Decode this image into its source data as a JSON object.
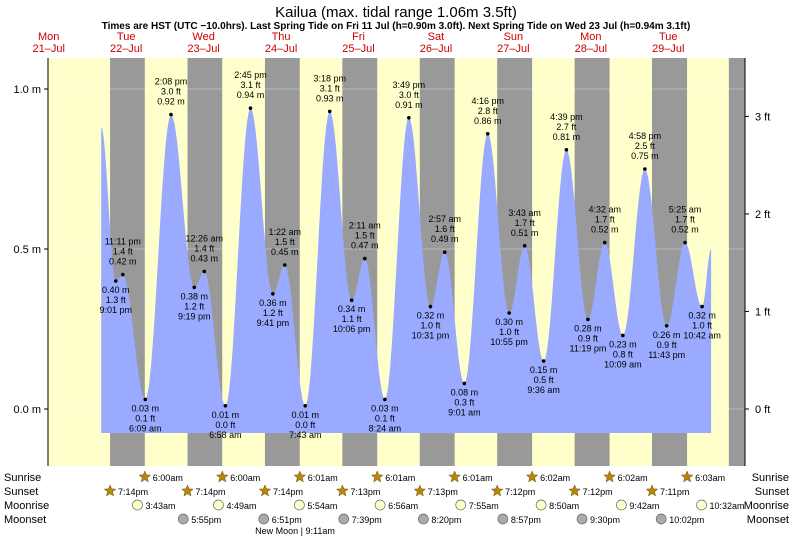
{
  "title": "Kailua (max. tidal range 1.06m 3.5ft)",
  "subtitle": "Times are HST (UTC −10.0hrs). Last Spring Tide on Fri 11 Jul (h=0.90m 3.0ft). Next Spring Tide on Wed 23 Jul (h=0.94m 3.1ft)",
  "colors": {
    "day": "#ffffcc",
    "night": "#999999",
    "water": "#99aaff",
    "date_text": "#cc0000",
    "sun_icon": "#b8860b",
    "moonrise_icon": "#ffffcc",
    "moonset_icon": "#aaaaaa"
  },
  "days": [
    {
      "dow": "Mon",
      "date": "21–Jul"
    },
    {
      "dow": "Tue",
      "date": "22–Jul"
    },
    {
      "dow": "Wed",
      "date": "23–Jul"
    },
    {
      "dow": "Thu",
      "date": "24–Jul"
    },
    {
      "dow": "Fri",
      "date": "25–Jul"
    },
    {
      "dow": "Sat",
      "date": "26–Jul"
    },
    {
      "dow": "Sun",
      "date": "27–Jul"
    },
    {
      "dow": "Mon",
      "date": "28–Jul"
    },
    {
      "dow": "Tue",
      "date": "29–Jul"
    }
  ],
  "row_labels": {
    "sunrise": "Sunrise",
    "sunset": "Sunset",
    "moonrise": "Moonrise",
    "moonset": "Moonset"
  },
  "moon_phase": "New Moon | 9:11am",
  "chart_data": {
    "type": "area",
    "x_unit": "hours since Mon 21-Jul 00:00 HST",
    "y_unit": "m",
    "ylim": [
      -0.1,
      1.1
    ],
    "xlim": [
      0,
      216
    ],
    "y_ticks_m": [
      {
        "v": 0.0,
        "label": "0.0 m"
      },
      {
        "v": 0.5,
        "label": "0.5 m"
      },
      {
        "v": 1.0,
        "label": "1.0 m"
      }
    ],
    "y_ticks_ft": [
      {
        "v": 0,
        "label": "0 ft"
      },
      {
        "v": 1,
        "label": "1 ft"
      },
      {
        "v": 2,
        "label": "2 ft"
      },
      {
        "v": 3,
        "label": "3 ft"
      }
    ],
    "series_start": {
      "t": 16.5,
      "h": 0.88
    },
    "series_end": {
      "t": 205.5,
      "h": 0.5
    },
    "tides": [
      {
        "t": 21.0,
        "time": "9:01 pm",
        "m": "0.40 m",
        "ft": "1.3 ft",
        "h": 0.4,
        "type": "low"
      },
      {
        "t": 23.18,
        "time": "11:11 pm",
        "m": "0.42 m",
        "ft": "1.4 ft",
        "h": 0.42,
        "type": "high"
      },
      {
        "t": 30.15,
        "time": "6:09 am",
        "m": "0.03 m",
        "ft": "0.1 ft",
        "h": 0.03,
        "type": "low"
      },
      {
        "t": 38.13,
        "time": "2:08 pm",
        "m": "0.92 m",
        "ft": "3.0 ft",
        "h": 0.92,
        "type": "high"
      },
      {
        "t": 45.32,
        "time": "9:19 pm",
        "m": "0.38 m",
        "ft": "1.2 ft",
        "h": 0.38,
        "type": "low"
      },
      {
        "t": 48.43,
        "time": "12:26 am",
        "m": "0.43 m",
        "ft": "1.4 ft",
        "h": 0.43,
        "type": "high"
      },
      {
        "t": 54.97,
        "time": "6:58 am",
        "m": "0.01 m",
        "ft": "0.0 ft",
        "h": 0.01,
        "type": "low"
      },
      {
        "t": 62.75,
        "time": "2:45 pm",
        "m": "0.94 m",
        "ft": "3.1 ft",
        "h": 0.94,
        "type": "high"
      },
      {
        "t": 69.68,
        "time": "9:41 pm",
        "m": "0.36 m",
        "ft": "1.2 ft",
        "h": 0.36,
        "type": "low"
      },
      {
        "t": 73.37,
        "time": "1:22 am",
        "m": "0.45 m",
        "ft": "1.5 ft",
        "h": 0.45,
        "type": "high"
      },
      {
        "t": 79.72,
        "time": "7:43 am",
        "m": "0.01 m",
        "ft": "0.0 ft",
        "h": 0.01,
        "type": "low"
      },
      {
        "t": 87.3,
        "time": "3:18 pm",
        "m": "0.93 m",
        "ft": "3.1 ft",
        "h": 0.93,
        "type": "high"
      },
      {
        "t": 94.1,
        "time": "10:06 pm",
        "m": "0.34 m",
        "ft": "1.1 ft",
        "h": 0.34,
        "type": "low"
      },
      {
        "t": 98.18,
        "time": "2:11 am",
        "m": "0.47 m",
        "ft": "1.5 ft",
        "h": 0.47,
        "type": "high"
      },
      {
        "t": 104.4,
        "time": "8:24 am",
        "m": "0.03 m",
        "ft": "0.1 ft",
        "h": 0.03,
        "type": "low"
      },
      {
        "t": 111.82,
        "time": "3:49 pm",
        "m": "0.91 m",
        "ft": "3.0 ft",
        "h": 0.91,
        "type": "high"
      },
      {
        "t": 118.52,
        "time": "10:31 pm",
        "m": "0.32 m",
        "ft": "1.0 ft",
        "h": 0.32,
        "type": "low"
      },
      {
        "t": 122.95,
        "time": "2:57 am",
        "m": "0.49 m",
        "ft": "1.6 ft",
        "h": 0.49,
        "type": "high"
      },
      {
        "t": 129.02,
        "time": "9:01 am",
        "m": "0.08 m",
        "ft": "0.3 ft",
        "h": 0.08,
        "type": "low"
      },
      {
        "t": 136.27,
        "time": "4:16 pm",
        "m": "0.86 m",
        "ft": "2.8 ft",
        "h": 0.86,
        "type": "high"
      },
      {
        "t": 142.92,
        "time": "10:55 pm",
        "m": "0.30 m",
        "ft": "1.0 ft",
        "h": 0.3,
        "type": "low"
      },
      {
        "t": 147.72,
        "time": "3:43 am",
        "m": "0.51 m",
        "ft": "1.7 ft",
        "h": 0.51,
        "type": "high"
      },
      {
        "t": 153.6,
        "time": "9:36 am",
        "m": "0.15 m",
        "ft": "0.5 ft",
        "h": 0.15,
        "type": "low"
      },
      {
        "t": 160.65,
        "time": "4:39 pm",
        "m": "0.81 m",
        "ft": "2.7 ft",
        "h": 0.81,
        "type": "high"
      },
      {
        "t": 167.32,
        "time": "11:19 pm",
        "m": "0.28 m",
        "ft": "0.9 ft",
        "h": 0.28,
        "type": "low"
      },
      {
        "t": 172.53,
        "time": "4:32 am",
        "m": "0.52 m",
        "ft": "1.7 ft",
        "h": 0.52,
        "type": "high"
      },
      {
        "t": 178.15,
        "time": "10:09 am",
        "m": "0.23 m",
        "ft": "0.8 ft",
        "h": 0.23,
        "type": "low"
      },
      {
        "t": 184.97,
        "time": "4:58 pm",
        "m": "0.75 m",
        "ft": "2.5 ft",
        "h": 0.75,
        "type": "high"
      },
      {
        "t": 191.72,
        "time": "11:43 pm",
        "m": "0.26 m",
        "ft": "0.9 ft",
        "h": 0.26,
        "type": "low"
      },
      {
        "t": 197.42,
        "time": "5:25 am",
        "m": "0.52 m",
        "ft": "1.7 ft",
        "h": 0.52,
        "type": "high"
      },
      {
        "t": 202.7,
        "time": "10:42 am",
        "m": "0.32 m",
        "ft": "1.0 ft",
        "h": 0.32,
        "type": "low"
      }
    ],
    "nights": [
      {
        "start": 19.23,
        "end": 30.0
      },
      {
        "start": 43.23,
        "end": 54.0
      },
      {
        "start": 67.23,
        "end": 78.02
      },
      {
        "start": 91.22,
        "end": 102.02
      },
      {
        "start": 115.22,
        "end": 126.02
      },
      {
        "start": 139.2,
        "end": 150.03
      },
      {
        "start": 163.2,
        "end": 174.03
      },
      {
        "start": 187.18,
        "end": 198.05
      },
      {
        "start": 211.0,
        "end": 216.0
      }
    ],
    "sunrise": [
      {
        "t": 30.0,
        "label": "6:00am"
      },
      {
        "t": 54.0,
        "label": "6:00am"
      },
      {
        "t": 78.02,
        "label": "6:01am"
      },
      {
        "t": 102.02,
        "label": "6:01am"
      },
      {
        "t": 126.02,
        "label": "6:01am"
      },
      {
        "t": 150.03,
        "label": "6:02am"
      },
      {
        "t": 174.03,
        "label": "6:02am"
      },
      {
        "t": 198.05,
        "label": "6:03am"
      }
    ],
    "sunset": [
      {
        "t": 19.23,
        "label": "7:14pm"
      },
      {
        "t": 43.23,
        "label": "7:14pm"
      },
      {
        "t": 67.23,
        "label": "7:14pm"
      },
      {
        "t": 91.22,
        "label": "7:13pm"
      },
      {
        "t": 115.22,
        "label": "7:13pm"
      },
      {
        "t": 139.2,
        "label": "7:12pm"
      },
      {
        "t": 163.2,
        "label": "7:12pm"
      },
      {
        "t": 187.18,
        "label": "7:11pm"
      }
    ],
    "moonrise": [
      {
        "t": 27.72,
        "label": "3:43am"
      },
      {
        "t": 52.82,
        "label": "4:49am"
      },
      {
        "t": 77.9,
        "label": "5:54am"
      },
      {
        "t": 102.93,
        "label": "6:56am"
      },
      {
        "t": 127.92,
        "label": "7:55am"
      },
      {
        "t": 152.83,
        "label": "8:50am"
      },
      {
        "t": 177.7,
        "label": "9:42am"
      },
      {
        "t": 202.53,
        "label": "10:32am"
      }
    ],
    "moonset": [
      {
        "t": 41.92,
        "label": "5:55pm"
      },
      {
        "t": 66.85,
        "label": "6:51pm"
      },
      {
        "t": 91.65,
        "label": "7:39pm"
      },
      {
        "t": 116.33,
        "label": "8:20pm"
      },
      {
        "t": 140.95,
        "label": "8:57pm"
      },
      {
        "t": 165.5,
        "label": "9:30pm"
      },
      {
        "t": 190.03,
        "label": "10:02pm"
      }
    ]
  }
}
